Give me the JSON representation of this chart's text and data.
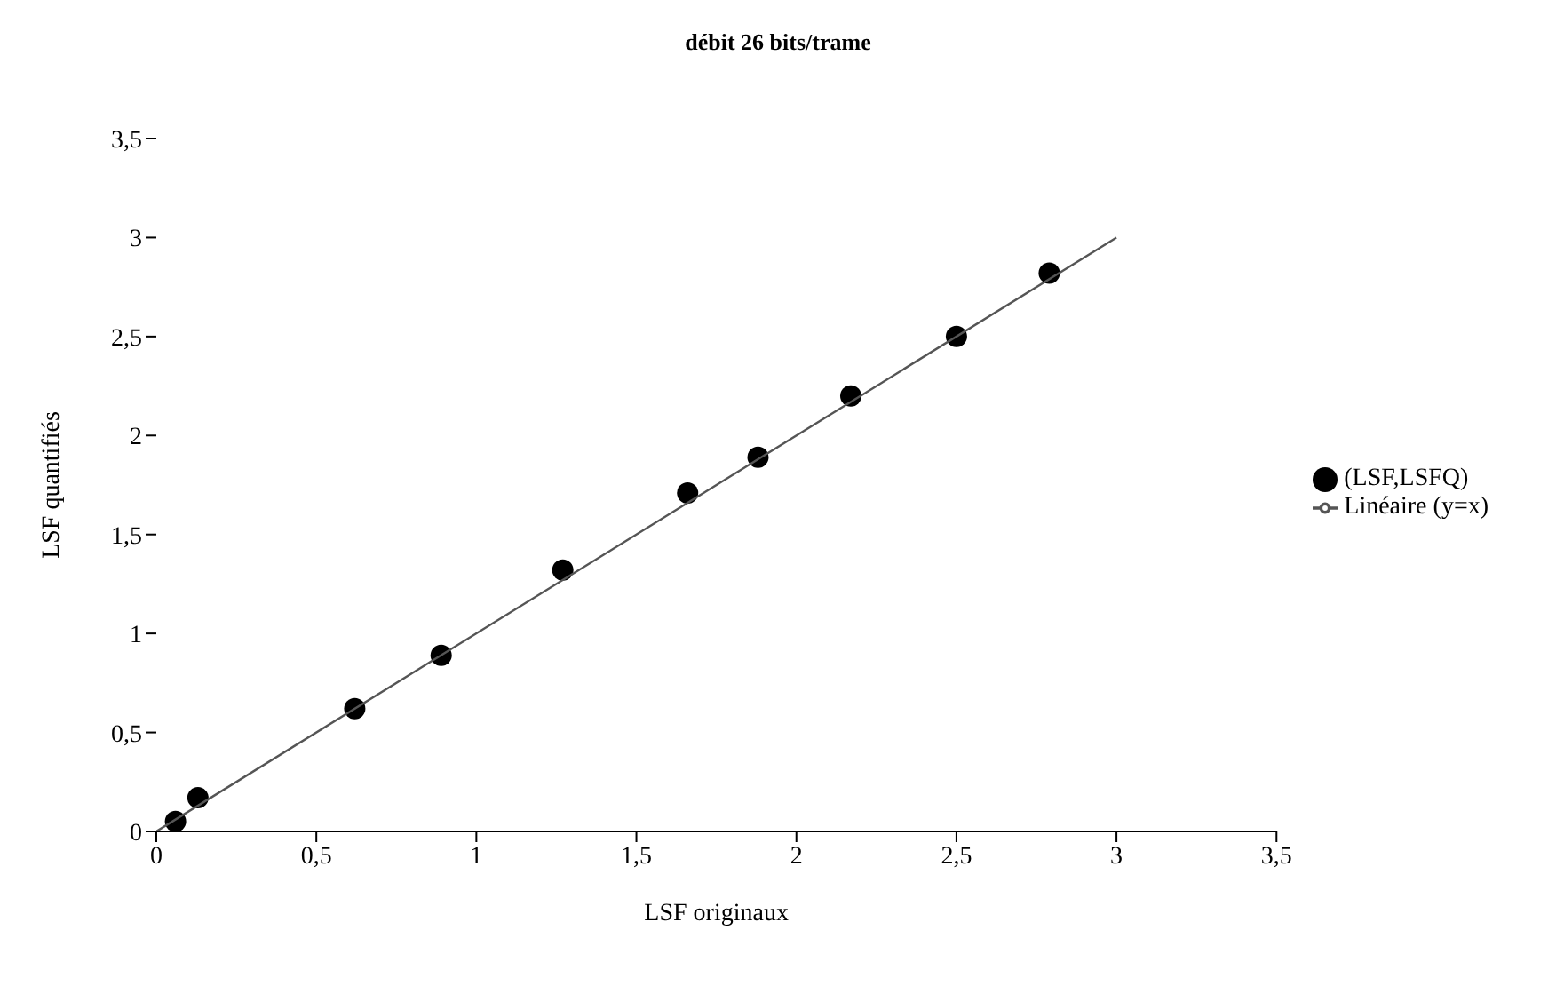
{
  "chart_data": {
    "type": "scatter",
    "title": "débit 26 bits/trame",
    "xlabel": "LSF originaux",
    "ylabel": "LSF quantifiés",
    "series": [
      {
        "name": "(LSF,LSFQ)",
        "marker": "circle",
        "color": "#000000",
        "x": [
          0.06,
          0.13,
          0.62,
          0.89,
          1.27,
          1.66,
          1.88,
          2.17,
          2.5,
          2.79
        ],
        "values": [
          0.05,
          0.17,
          0.62,
          0.89,
          1.32,
          1.71,
          1.89,
          2.2,
          2.5,
          2.82
        ]
      },
      {
        "name": "Linéaire (y=x)",
        "type": "line",
        "marker": "none",
        "color": "#555555",
        "x": [
          0,
          3
        ],
        "values": [
          0,
          3
        ]
      }
    ],
    "xlim": [
      0,
      3.5
    ],
    "ylim": [
      0,
      3.5
    ],
    "xticks": [
      0,
      {
        "value": 0.5,
        "label": "0,5"
      },
      1,
      {
        "value": 1.5,
        "label": "1,5"
      },
      2,
      {
        "value": 2.5,
        "label": "2,5"
      },
      3,
      {
        "value": 3.5,
        "label": "3,5"
      }
    ],
    "yticks": [
      0,
      {
        "value": 0.5,
        "label": "0,5"
      },
      1,
      {
        "value": 1.5,
        "label": "1,5"
      },
      2,
      {
        "value": 2.5,
        "label": "2,5"
      },
      3,
      {
        "value": 3.5,
        "label": "3,5"
      }
    ],
    "grid": false,
    "legend": "right"
  }
}
